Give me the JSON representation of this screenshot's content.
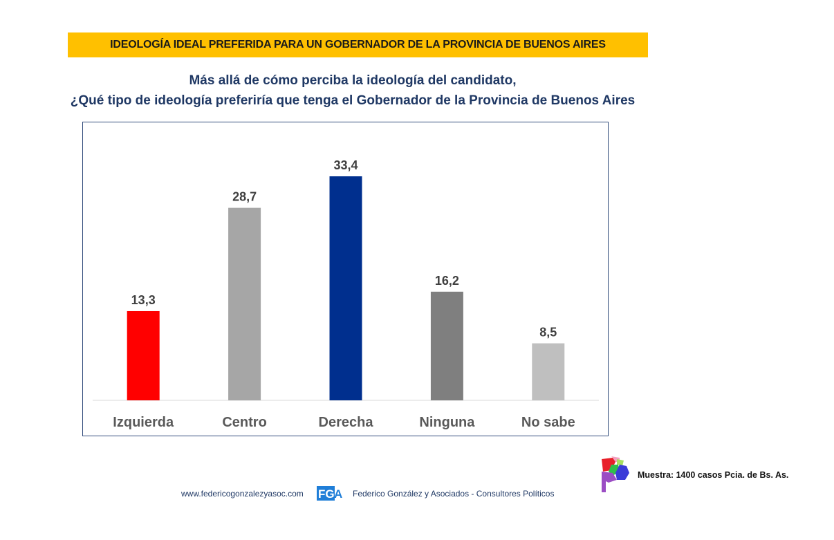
{
  "header": {
    "banner_title": "IDEOLOGÍA IDEAL PREFERIDA PARA UN GOBERNADOR DE LA PROVINCIA DE BUENOS AIRES",
    "banner_color": "#ffc000",
    "subtitle_line1": "Más allá de cómo perciba la ideología del candidato,",
    "subtitle_line2": "¿Qué tipo de ideología preferiría que tenga el Gobernador de la Provincia de Buenos Aires"
  },
  "chart_data": {
    "type": "bar",
    "title": "¿Qué tipo de ideología preferiría que tenga el Gobernador de la Provincia de Buenos Aires",
    "categories": [
      "Izquierda",
      "Centro",
      "Derecha",
      "Ninguna",
      "No sabe"
    ],
    "values": [
      13.3,
      28.7,
      33.4,
      16.2,
      8.5
    ],
    "value_labels": [
      "13,3",
      "28,7",
      "33,4",
      "16,2",
      "8,5"
    ],
    "colors": [
      "#ff0000",
      "#a6a6a6",
      "#002f8e",
      "#7f7f7f",
      "#bfbfbf"
    ],
    "xlabel": "",
    "ylabel": "",
    "ylim": [
      0,
      40
    ],
    "grid": false,
    "legend": "none"
  },
  "footer": {
    "url": "www.federicogonzalezyasoc.com",
    "logo_text": "FGA",
    "firm": "Federico González y Asociados - Consultores Políticos",
    "sample": "Muestra: 1400 casos Pcia. de Bs. As."
  }
}
